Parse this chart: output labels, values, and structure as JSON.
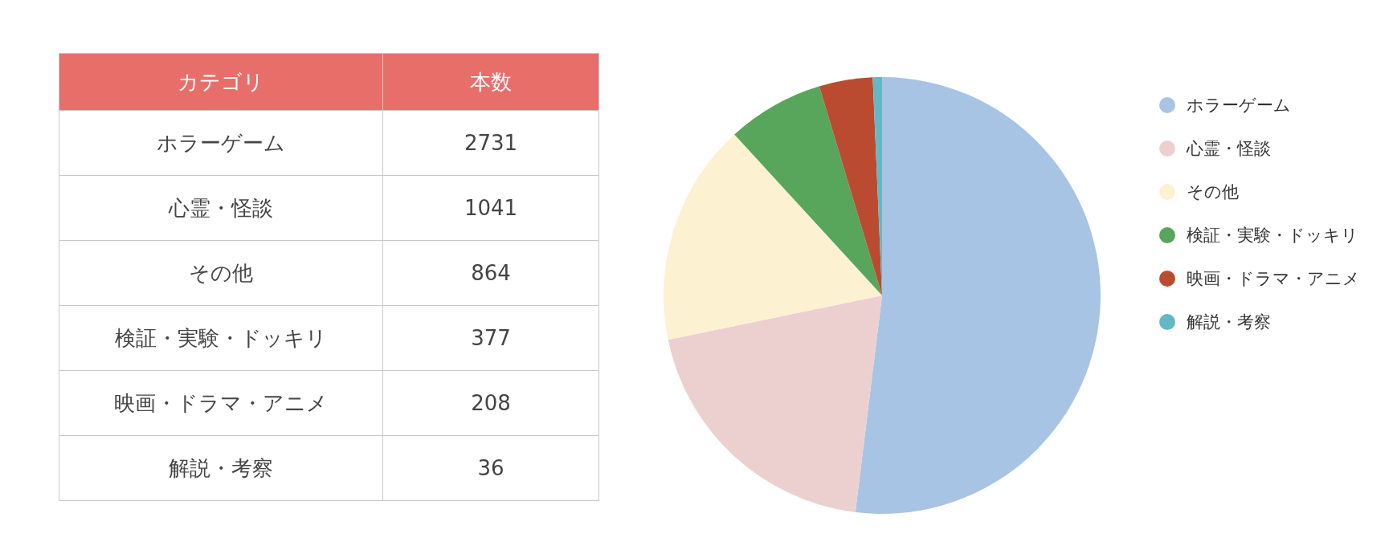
{
  "chart_data": [
    {
      "type": "other",
      "categories": [
        "ホラーゲーム",
        "心霊・怪談",
        "その他",
        "検証・実験・ドッキリ",
        "映画・ドラマ・アニメ",
        "解説・考察"
      ],
      "values": [
        2731,
        1041,
        864,
        377,
        208,
        36
      ],
      "data_labels": true,
      "annotations": [
        "カテゴリ",
        "本数"
      ]
    },
    {
      "type": "pie",
      "categories": [
        "ホラーゲーム",
        "心霊・怪談",
        "その他",
        "検証・実験・ドッキリ",
        "映画・ドラマ・アニメ",
        "解説・考察"
      ],
      "values": [
        51.95,
        19.8,
        16.44,
        7.17,
        3.96,
        0.68
      ],
      "colors": [
        "#a8c4e4",
        "#ecd0d0",
        "#fcf1d0",
        "#58a55c",
        "#bb4b30",
        "#64b8c6"
      ],
      "legend": "right"
    }
  ]
}
